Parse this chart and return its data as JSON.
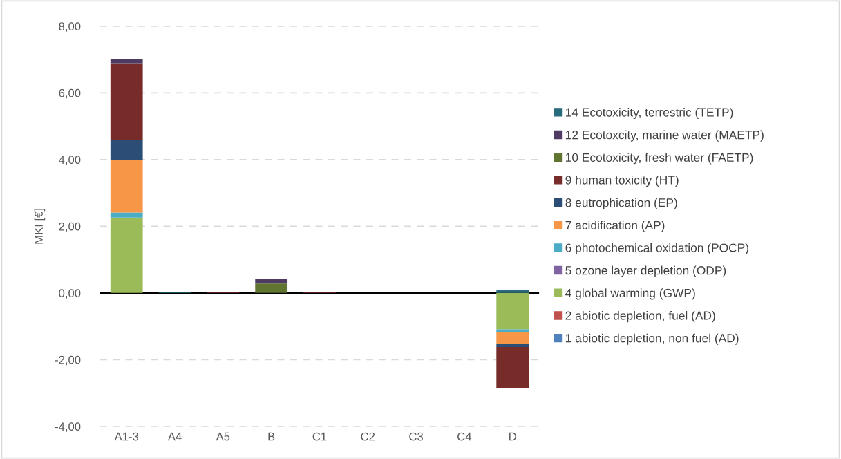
{
  "chart_data": {
    "type": "bar",
    "stacked": true,
    "ylabel": "MKI [€]",
    "categories": [
      "A1-3",
      "A4",
      "A5",
      "B",
      "C1",
      "C2",
      "C3",
      "C4",
      "D"
    ],
    "series": [
      {
        "name": "1 abiotic depletion, non fuel (AD)",
        "color": "#4f81bd",
        "values": [
          0,
          0,
          0,
          0,
          0,
          0,
          0,
          0,
          0
        ]
      },
      {
        "name": "2 abiotic depletion, fuel (AD)",
        "color": "#c0504d",
        "values": [
          0,
          0,
          0,
          0,
          0,
          0,
          0,
          0,
          0
        ]
      },
      {
        "name": "4 global warming (GWP)",
        "color": "#9bbb59",
        "values": [
          2.26,
          0,
          0,
          0,
          0,
          0,
          0,
          0,
          -1.09
        ]
      },
      {
        "name": "5 ozone layer depletion (ODP)",
        "color": "#8064a2",
        "values": [
          0,
          0,
          0,
          0,
          0,
          0,
          0,
          0,
          0
        ]
      },
      {
        "name": "6 photochemical oxidation (POCP)",
        "color": "#4bacc6",
        "values": [
          0.15,
          0,
          0,
          0,
          0,
          0,
          0,
          0,
          -0.09
        ]
      },
      {
        "name": "7 acidification (AP)",
        "color": "#f79646",
        "values": [
          1.58,
          0,
          0,
          0,
          0,
          0,
          0,
          0,
          -0.35
        ]
      },
      {
        "name": "8 eutrophication (EP)",
        "color": "#2c4d75",
        "values": [
          0.61,
          0,
          0,
          0,
          0,
          0,
          0,
          0,
          -0.09
        ]
      },
      {
        "name": "9 human toxicity (HT)",
        "color": "#772c2a",
        "values": [
          2.29,
          0,
          0.04,
          0,
          0.04,
          0,
          0,
          0,
          -1.24
        ]
      },
      {
        "name": "10 Ecotoxicity, fresh water (FAETP)",
        "color": "#5f7530",
        "values": [
          0,
          0,
          0,
          0.28,
          0,
          0,
          0,
          0,
          0
        ]
      },
      {
        "name": "12 Ecotoxcity, marine water (MAETP)",
        "color": "#4d3b62",
        "values": [
          0.11,
          0,
          0,
          0.13,
          0,
          0,
          0,
          0,
          0
        ]
      },
      {
        "name": "14 Ecotoxicity, terrestric (TETP)",
        "color": "#276a7c",
        "values": [
          0.02,
          0.02,
          0,
          0,
          0,
          0,
          0,
          0,
          0.08
        ]
      }
    ],
    "ylim": [
      -4,
      8
    ],
    "yticks": [
      {
        "value": -4,
        "label": "-4,00"
      },
      {
        "value": -2,
        "label": "-2,00"
      },
      {
        "value": 0,
        "label": "0,00"
      },
      {
        "value": 2,
        "label": "2,00"
      },
      {
        "value": 4,
        "label": "4,00"
      },
      {
        "value": 6,
        "label": "6,00"
      },
      {
        "value": 8,
        "label": "8,00"
      }
    ],
    "grid": "y",
    "legend": "right"
  }
}
